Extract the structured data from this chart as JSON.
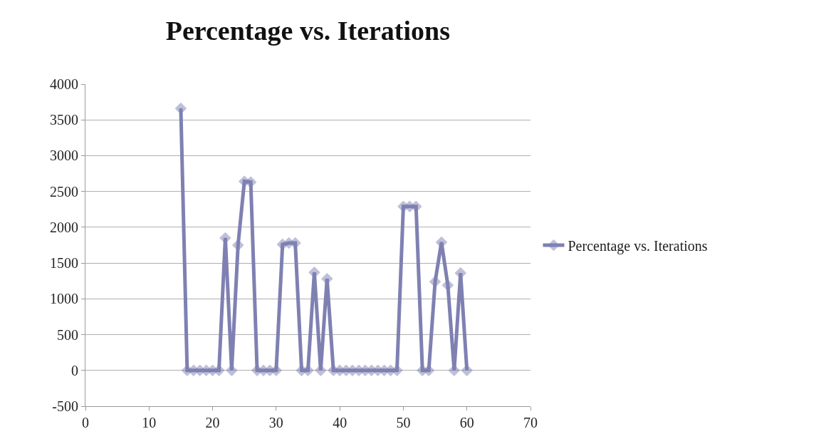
{
  "chart_data": {
    "type": "line",
    "title": "Percentage vs. Iterations",
    "x": [
      15,
      16,
      17,
      18,
      19,
      20,
      21,
      22,
      23,
      24,
      25,
      26,
      27,
      28,
      29,
      30,
      31,
      32,
      33,
      34,
      35,
      36,
      37,
      38,
      39,
      40,
      41,
      42,
      43,
      44,
      45,
      46,
      47,
      48,
      49,
      50,
      51,
      52,
      53,
      54,
      55,
      56,
      57,
      58,
      59,
      60
    ],
    "series": [
      {
        "name": "Percentage vs. Iterations",
        "color": "#7f80b2",
        "values": [
          3660,
          0,
          0,
          0,
          0,
          0,
          0,
          1850,
          0,
          1750,
          2640,
          2630,
          0,
          0,
          0,
          0,
          1760,
          1780,
          1780,
          0,
          0,
          1370,
          0,
          1280,
          0,
          0,
          0,
          0,
          0,
          0,
          0,
          0,
          0,
          0,
          0,
          2290,
          2290,
          2290,
          0,
          0,
          1240,
          1790,
          1190,
          0,
          1360,
          0
        ]
      }
    ],
    "xlim": [
      0,
      70
    ],
    "xticks": [
      0,
      10,
      20,
      30,
      40,
      50,
      60,
      70
    ],
    "ylim": [
      -500,
      4000
    ],
    "yticks": [
      -500,
      0,
      500,
      1000,
      1500,
      2000,
      2500,
      3000,
      3500,
      4000
    ],
    "grid": "y",
    "legend": "right",
    "marker": "diamond",
    "line_style": "solid"
  }
}
